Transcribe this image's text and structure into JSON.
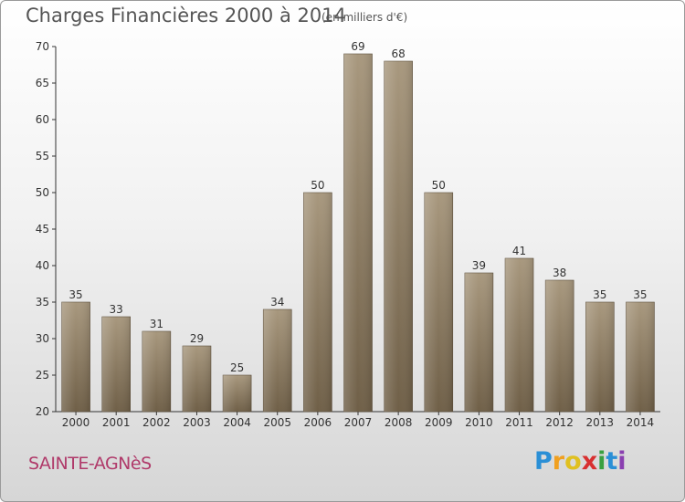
{
  "chart_data": {
    "type": "bar",
    "title": "Charges Financières 2000 à 2014",
    "subtitle": "(en milliers d'€)",
    "categories": [
      "2000",
      "2001",
      "2002",
      "2003",
      "2004",
      "2005",
      "2006",
      "2007",
      "2008",
      "2009",
      "2010",
      "2011",
      "2012",
      "2013",
      "2014"
    ],
    "values": [
      35,
      33,
      31,
      29,
      25,
      34,
      50,
      69,
      68,
      50,
      39,
      41,
      38,
      35,
      35
    ],
    "ylim": [
      20,
      70
    ],
    "yticks": [
      20,
      25,
      30,
      35,
      40,
      45,
      50,
      55,
      60,
      65,
      70
    ],
    "grid": false,
    "bar_color": "#8c7b61"
  },
  "footer": {
    "commune": "SAINTE-AGNèS",
    "brand_letters": [
      "P",
      "r",
      "o",
      "x",
      "i",
      "t",
      "i"
    ],
    "brand_colors": [
      "#2a8fd6",
      "#f0a020",
      "#e0c020",
      "#d83030",
      "#3aa040",
      "#2a8fd6",
      "#8a3fb0"
    ]
  }
}
